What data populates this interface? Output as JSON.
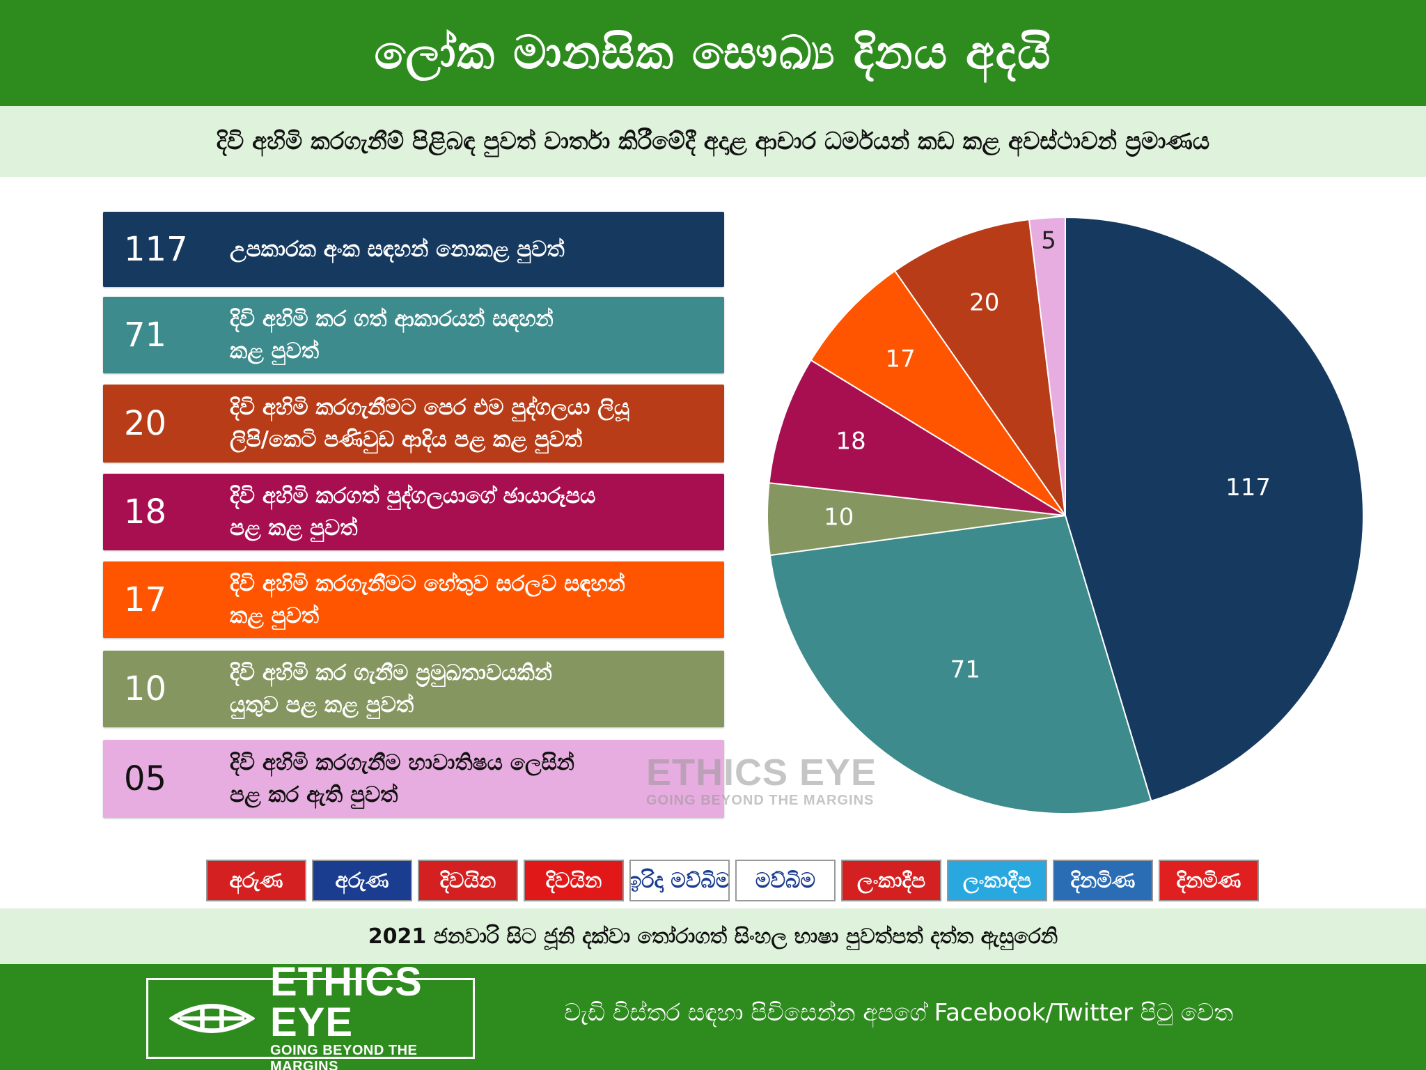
{
  "header": {
    "title": "ලෝක මානසික සෞඛ්‍ය දිනය අදයි",
    "subtitle": "දිවි අහිමි කරගැනීම් පිළිබඳ පුවත් වාර්තා කිරීමේදී අදාළ ආචාර ධර්මයන් කඩ කළ අවස්ථාවන් ප්‍රමාණය"
  },
  "legend": [
    {
      "num": "117",
      "line1": "උපකාරක අංක සඳහන් නොකළ පුවත්",
      "line2": "",
      "color": "#163a5f"
    },
    {
      "num": "71",
      "line1": "දිවි අහිමි කර ගත් ආකාරයන් සඳහන්",
      "line2": "කළ පුවත්",
      "color": "#3d8b8c"
    },
    {
      "num": "20",
      "line1": "දිවි අහිමි කරගැනීමට පෙර එම පුද්ගලයා ලියූ",
      "line2": "ලිපි/කෙටි පණිවුඩ ආදිය පළ කළ පුවත්",
      "color": "#b83c17"
    },
    {
      "num": "18",
      "line1": "දිවි අහිමි කරගත් පුද්ගලයාගේ ඡායාරූපය",
      "line2": "පළ කළ පුවත්",
      "color": "#a80f50"
    },
    {
      "num": "17",
      "line1": "දිවි අහිමි කරගැනීමට හේතුව සරලව සඳහන්",
      "line2": "කළ පුවත්",
      "color": "#ff5500"
    },
    {
      "num": "10",
      "line1": "දිවි අහිමි කර ගැනීම ප්‍රමුඛතාවයකින්",
      "line2": "යුතුව පළ කළ පුවත්",
      "color": "#869660"
    },
    {
      "num": "05",
      "line1": "දිවි අහිමි කරගැනීම හාවාතිෂය ලෙසින්",
      "line2": "පළ කර ඇති පුවත්",
      "color": "#e8ade0"
    }
  ],
  "chart_data": {
    "type": "pie",
    "categories": [
      "උපකාරක අංක සඳහන් නොකළ පුවත්",
      "දිවි අහිමි කර ගත් ආකාරයන් සඳහන් කළ පුවත්",
      "දිවි අහිමි කර ගැනීම ප්‍රමුඛතාවයකින් යුතුව පළ කළ පුවත්",
      "දිවි අහිමි කරගත් පුද්ගලයාගේ ඡායාරූපය පළ කළ පුවත්",
      "දිවි අහිමි කරගැනීමට හේතුව සරලව සඳහන් කළ පුවත්",
      "දිවි අහිමි කරගැනීමට පෙර එම පුද්ගලයා ලියූ ලිපි/කෙටි පණිවුඩ ආදිය පළ කළ පුවත්",
      "දිවි අහිමි කරගැනීම හාවාතිෂය ලෙසින් පළ කර ඇති පුවත්"
    ],
    "values": [
      117,
      71,
      10,
      18,
      17,
      20,
      5
    ],
    "labels": [
      "117",
      "71",
      "10",
      "18",
      "17",
      "20",
      "5"
    ],
    "colors": [
      "#163a5f",
      "#3d8b8c",
      "#869660",
      "#a80f50",
      "#ff5500",
      "#b83c17",
      "#e8ade0"
    ],
    "label_colors": [
      "#ffffff",
      "#ffffff",
      "#ffffff",
      "#ffffff",
      "#ffffff",
      "#ffffff",
      "#222222"
    ]
  },
  "watermark": {
    "main": "ETHICS EYE",
    "sub": "GOING BEYOND THE MARGINS"
  },
  "newspapers": [
    {
      "name": "අරුණ",
      "bg": "#d42020",
      "fg": "#ffffff"
    },
    {
      "name": "අරුණ",
      "bg": "#1a3d8f",
      "fg": "#ffffff"
    },
    {
      "name": "දිවයින",
      "bg": "#d42020",
      "fg": "#ffffff"
    },
    {
      "name": "දිවයින",
      "bg": "#e01818",
      "fg": "#ffffff"
    },
    {
      "name": "ඉරිදා මව්බිම",
      "bg": "#ffffff",
      "fg": "#1a3d8f"
    },
    {
      "name": "මව්බිම",
      "bg": "#ffffff",
      "fg": "#1a3d8f"
    },
    {
      "name": "ලංකාදීප",
      "bg": "#d42020",
      "fg": "#ffffff"
    },
    {
      "name": "ලංකාදීප",
      "bg": "#29a8e0",
      "fg": "#ffffff"
    },
    {
      "name": "දිනමිණ",
      "bg": "#2a6db5",
      "fg": "#ffffff"
    },
    {
      "name": "දිනමිණ",
      "bg": "#e02020",
      "fg": "#ffffff"
    }
  ],
  "source_note": "2021 ජනවාරි සිට ජූනි දක්වා තෝරාගත් සිංහල භාෂා පුවත්පත් දත්ත ඇසුරෙනි",
  "brand": {
    "name": "ETHICS EYE",
    "tagline": "GOING BEYOND THE MARGINS"
  },
  "footer_note": "වැඩි විස්තර සඳහා පිවිසෙන්න අපගේ Facebook/Twitter පිටු වෙත"
}
